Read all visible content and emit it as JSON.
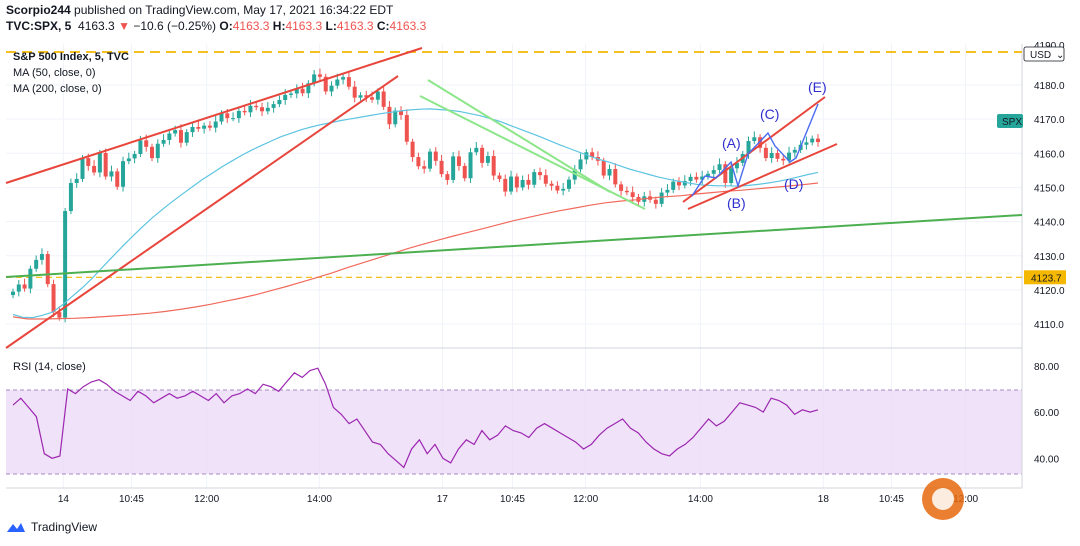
{
  "header": {
    "author": "Scorpio244",
    "published_text": "published on TradingView.com, May 17, 2021 16:34:22 EDT",
    "symbol": "TVC:SPX, 5",
    "last": "4163.3",
    "change_arrow": "▼",
    "change": "−10.6 (−0.25%)",
    "o_label": "O:",
    "o": "4163.3",
    "h_label": "H:",
    "h": "4163.3",
    "l_label": "L:",
    "l": "4163.3",
    "c_label": "C:",
    "c": "4163.3"
  },
  "legend": {
    "title": "S&P 500 Index, 5, TVC",
    "ma50": "MA (50, close, 0)",
    "ma200": "MA (200, close, 0)",
    "rsi": "RSI (14, close)"
  },
  "price_axis": {
    "ticks": [
      4110,
      4120,
      4130,
      4140,
      4150,
      4160,
      4170,
      4180
    ],
    "top_label": "4190.0",
    "currency": "USD",
    "ref_label": "4123.7",
    "ref_value": 4123.7,
    "symbol_tag": "SPX",
    "symbol_tag_value": 4163.3
  },
  "rsi_axis": {
    "ticks": [
      40,
      60,
      80
    ]
  },
  "time_axis": {
    "labels": [
      {
        "t": "14",
        "pos": 0.0565
      },
      {
        "t": "10:45",
        "pos": 0.1235
      },
      {
        "t": "12:00",
        "pos": 0.1975
      },
      {
        "t": "14:00",
        "pos": 0.3085
      },
      {
        "t": "17",
        "pos": 0.4295
      },
      {
        "t": "10:45",
        "pos": 0.4985
      },
      {
        "t": "12:00",
        "pos": 0.5705
      },
      {
        "t": "14:00",
        "pos": 0.6835
      },
      {
        "t": "18",
        "pos": 0.8045
      },
      {
        "t": "10:45",
        "pos": 0.8715
      },
      {
        "t": "12:00",
        "pos": 0.9445
      }
    ]
  },
  "annotations": [
    "(A)",
    "(B)",
    "(C)",
    "(D)",
    "(E)"
  ],
  "chart_data": {
    "type": "candlestick",
    "title": "S&P 500 Index, 5, TVC",
    "ylim": [
      4103,
      4192
    ],
    "rsi_ylim": [
      28,
      86
    ],
    "up_color": "#26a69a",
    "down_color": "#ef5350",
    "ma50_color": "#5ec4e0",
    "ma200_color": "#f06a5c",
    "rsi_color": "#9c27b0",
    "close": [
      4119.5,
      4121.6,
      4120.4,
      4126.2,
      4128.8,
      4130.5,
      4121.7,
      4113.5,
      4111.9,
      4143.1,
      4151.3,
      4152.5,
      4158.6,
      4156.3,
      4154.4,
      4160.1,
      4153.2,
      4154.7,
      4150.2,
      4157.7,
      4158.5,
      4159.8,
      4163.8,
      4161.9,
      4158.6,
      4162.8,
      4163.9,
      4165.8,
      4166.8,
      4163.1,
      4166.2,
      4167.7,
      4167.2,
      4168.1,
      4167.5,
      4169.3,
      4171.7,
      4170.3,
      4170.3,
      4172.4,
      4172.0,
      4173.9,
      4173.5,
      4172.3,
      4173.3,
      4174.4,
      4175.6,
      4177.1,
      4177.5,
      4178.9,
      4177.6,
      4180.5,
      4183.1,
      4182.4,
      4178.1,
      4179.8,
      4181.6,
      4182.3,
      4179.5,
      4176.3,
      4177.0,
      4176.4,
      4175.7,
      4178.1,
      4173.6,
      4168.5,
      4172.5,
      4171.2,
      4163.4,
      4158.9,
      4156.2,
      4155.5,
      4160.5,
      4157.8,
      4153.9,
      4152.2,
      4159.1,
      4156.3,
      4152.7,
      4160.3,
      4161.6,
      4157.2,
      4159.2,
      4153.5,
      4152.5,
      4148.8,
      4153.2,
      4150.0,
      4152.2,
      4150.8,
      4154.5,
      4153.6,
      4151.1,
      4150.5,
      4149.1,
      4149.6,
      4152.3,
      4155.3,
      4158.2,
      4160.3,
      4158.9,
      4157.8,
      4153.5,
      4155.4,
      4150.9,
      4149.0,
      4148.6,
      4147.2,
      4145.8,
      4147.4,
      4146.4,
      4145.2,
      4148.5,
      4149.3,
      4151.7,
      4150.6,
      4151.9,
      4153.1,
      4152.3,
      4153.2,
      4154.0,
      4155.1,
      4156.8,
      4151.3,
      4155.6,
      4157.2,
      4159.8,
      4163.6,
      4164.7,
      4161.6,
      4158.6,
      4160.1,
      4158.4,
      4157.9,
      4160.2,
      4161.0,
      4162.5,
      4163.2,
      4164.3,
      4163.3
    ],
    "ma50": [
      4112.8,
      4112.0,
      4111.9,
      4112.6,
      4113.5,
      4115.7,
      4118.2,
      4120.7,
      4123.5,
      4126.6,
      4129.7,
      4132.7,
      4135.6,
      4138.4,
      4141.1,
      4143.5,
      4145.8,
      4148.0,
      4150.1,
      4152.2,
      4154.1,
      4156.0,
      4157.7,
      4159.4,
      4160.9,
      4162.3,
      4163.6,
      4164.9,
      4165.9,
      4166.9,
      4167.7,
      4168.4,
      4169.0,
      4169.6,
      4170.1,
      4170.6,
      4171.1,
      4171.6,
      4172.0,
      4172.4,
      4172.7,
      4172.9,
      4173.0,
      4172.8,
      4172.6,
      4172.2,
      4171.6,
      4171.0,
      4170.2,
      4169.3,
      4168.2,
      4167.1,
      4166.0,
      4164.9,
      4163.7,
      4162.5,
      4161.4,
      4160.3,
      4159.2,
      4158.2,
      4157.4,
      4156.4,
      4155.4,
      4154.6,
      4153.8,
      4153.0,
      4152.4,
      4151.8,
      4151.3,
      4150.8,
      4150.6,
      4150.5,
      4150.5,
      4150.4,
      4150.6,
      4150.9,
      4151.3,
      4151.8,
      4152.4,
      4153.1,
      4153.8,
      4154.4
    ],
    "ma200": [
      4112.1,
      4111.5,
      4111.5,
      4111.6,
      4111.7,
      4111.9,
      4112.2,
      4112.5,
      4112.8,
      4113.2,
      4113.7,
      4114.3,
      4115.0,
      4115.8,
      4116.7,
      4117.6,
      4118.6,
      4119.8,
      4121.0,
      4122.3,
      4123.6,
      4125.0,
      4126.5,
      4127.9,
      4129.3,
      4130.7,
      4132.1,
      4133.4,
      4134.6,
      4135.8,
      4136.9,
      4138.0,
      4139.2,
      4140.3,
      4141.3,
      4142.3,
      4143.2,
      4144.0,
      4144.8,
      4145.5,
      4146.0,
      4146.4,
      4146.9,
      4147.3,
      4147.6,
      4148.1,
      4148.5,
      4148.9,
      4149.2,
      4149.6,
      4150.0,
      4150.4,
      4150.8,
      4151.3
    ],
    "rsi": [
      63,
      66,
      62,
      58,
      42,
      40,
      41,
      70,
      68,
      71,
      73,
      74,
      72,
      69,
      67,
      65,
      69,
      67,
      64,
      66,
      68,
      66,
      67,
      69,
      67,
      65,
      68,
      64,
      67,
      68,
      70,
      68,
      72,
      71,
      69,
      73,
      77,
      75,
      78,
      79,
      72,
      62,
      59,
      55,
      57,
      52,
      47,
      46,
      42,
      39,
      36,
      44,
      48,
      42,
      46,
      40,
      38,
      44,
      48,
      46,
      52,
      48,
      50,
      54,
      52,
      51,
      49,
      53,
      55,
      53,
      51,
      49,
      47,
      44,
      46,
      50,
      53,
      55,
      57,
      53,
      51,
      47,
      44,
      42,
      41,
      44,
      46,
      49,
      53,
      57,
      54,
      56,
      60,
      64,
      63,
      62,
      60,
      66,
      65,
      63,
      59,
      61,
      60,
      61
    ]
  }
}
